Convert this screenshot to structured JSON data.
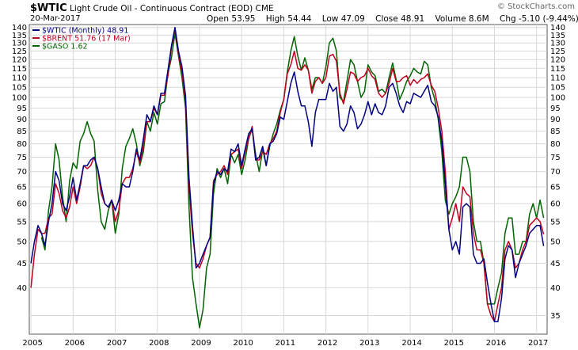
{
  "header": {
    "symbol": "$WTIC",
    "description": "Light Crude Oil - Continuous Contract (EOD)",
    "exchange": "CME",
    "date": "20-Mar-2017",
    "open_label": "Open",
    "open": "53.95",
    "high_label": "High",
    "high": "54.44",
    "low_label": "Low",
    "low": "47.09",
    "close_label": "Close",
    "close": "48.91",
    "volume_label": "Volume",
    "volume": "8.6M",
    "chg_label": "Chg",
    "chg": "-5.10 (-9.44%)",
    "chg_arrow": "▼",
    "credit": "© StockCharts.com"
  },
  "chart_data": {
    "type": "line",
    "x": [
      2005.0,
      2005.083,
      2005.167,
      2005.25,
      2005.333,
      2005.417,
      2005.5,
      2005.583,
      2005.667,
      2005.75,
      2005.833,
      2005.917,
      2006.0,
      2006.083,
      2006.167,
      2006.25,
      2006.333,
      2006.417,
      2006.5,
      2006.583,
      2006.667,
      2006.75,
      2006.833,
      2006.917,
      2007.0,
      2007.083,
      2007.167,
      2007.25,
      2007.333,
      2007.417,
      2007.5,
      2007.583,
      2007.667,
      2007.75,
      2007.833,
      2007.917,
      2008.0,
      2008.083,
      2008.167,
      2008.25,
      2008.333,
      2008.417,
      2008.5,
      2008.583,
      2008.667,
      2008.75,
      2008.833,
      2008.917,
      2009.0,
      2009.083,
      2009.167,
      2009.25,
      2009.333,
      2009.417,
      2009.5,
      2009.583,
      2009.667,
      2009.75,
      2009.833,
      2009.917,
      2010.0,
      2010.083,
      2010.167,
      2010.25,
      2010.333,
      2010.417,
      2010.5,
      2010.583,
      2010.667,
      2010.75,
      2010.833,
      2010.917,
      2011.0,
      2011.083,
      2011.167,
      2011.25,
      2011.333,
      2011.417,
      2011.5,
      2011.583,
      2011.667,
      2011.75,
      2011.833,
      2011.917,
      2012.0,
      2012.083,
      2012.167,
      2012.25,
      2012.333,
      2012.417,
      2012.5,
      2012.583,
      2012.667,
      2012.75,
      2012.833,
      2012.917,
      2013.0,
      2013.083,
      2013.167,
      2013.25,
      2013.333,
      2013.417,
      2013.5,
      2013.583,
      2013.667,
      2013.75,
      2013.833,
      2013.917,
      2014.0,
      2014.083,
      2014.167,
      2014.25,
      2014.333,
      2014.417,
      2014.5,
      2014.583,
      2014.667,
      2014.75,
      2014.833,
      2014.917,
      2015.0,
      2015.083,
      2015.167,
      2015.25,
      2015.333,
      2015.417,
      2015.5,
      2015.583,
      2015.667,
      2015.75,
      2015.833,
      2015.917,
      2016.0,
      2016.083,
      2016.167,
      2016.25,
      2016.333,
      2016.417,
      2016.5,
      2016.583,
      2016.667,
      2016.75,
      2016.833,
      2016.917,
      2017.0,
      2017.083,
      2017.167
    ],
    "series": [
      {
        "name": "$WTIC (Monthly) 48.91",
        "color": "#000080",
        "values": [
          45,
          50,
          54,
          52,
          49,
          55,
          60,
          70,
          67,
          60,
          58,
          62,
          68,
          61,
          66,
          72,
          72,
          74,
          75,
          71,
          65,
          60,
          59,
          61,
          58,
          61,
          66,
          65,
          65,
          70,
          78,
          74,
          82,
          92,
          89,
          96,
          92,
          102,
          102,
          114,
          128,
          140,
          125,
          116,
          101,
          68,
          54,
          44,
          45,
          47,
          49,
          51,
          66,
          70,
          69,
          71,
          70,
          78,
          77,
          80,
          72,
          78,
          84,
          86,
          74,
          75,
          79,
          72,
          80,
          81,
          84,
          91,
          90,
          98,
          107,
          113,
          103,
          96,
          96,
          89,
          79,
          93,
          99,
          99,
          99,
          107,
          103,
          105,
          87,
          85,
          88,
          96,
          93,
          86,
          88,
          92,
          98,
          92,
          97,
          93,
          92,
          96,
          105,
          107,
          102,
          96,
          93,
          98,
          97,
          102,
          101,
          100,
          103,
          106,
          98,
          96,
          91,
          81,
          66,
          53,
          48,
          50,
          47,
          59,
          60,
          59,
          47,
          45,
          45,
          46,
          41,
          37,
          34,
          34,
          38,
          46,
          49,
          48,
          42,
          45,
          47,
          49,
          52,
          53,
          54,
          54,
          48.91
        ]
      },
      {
        "name": "$BRENT 51.76 (17 Mar)",
        "color": "#c00020",
        "values": [
          40,
          47,
          53,
          52,
          52,
          56,
          57,
          66,
          63,
          58,
          56,
          59,
          65,
          60,
          65,
          72,
          71,
          72,
          75,
          71,
          63,
          60,
          59,
          61,
          55,
          58,
          66,
          68,
          68,
          71,
          77,
          73,
          79,
          89,
          89,
          95,
          92,
          101,
          101,
          111,
          127,
          139,
          123,
          113,
          98,
          65,
          52,
          45,
          44,
          46,
          49,
          51,
          67,
          69,
          70,
          72,
          69,
          76,
          77,
          78,
          71,
          77,
          82,
          87,
          74,
          74,
          77,
          76,
          80,
          82,
          85,
          93,
          99,
          112,
          117,
          125,
          115,
          114,
          117,
          114,
          102,
          108,
          110,
          107,
          110,
          122,
          123,
          119,
          102,
          97,
          104,
          113,
          112,
          108,
          110,
          111,
          115,
          111,
          109,
          102,
          100,
          102,
          107,
          115,
          108,
          108,
          110,
          111,
          106,
          109,
          107,
          109,
          110,
          112,
          106,
          103,
          95,
          85,
          70,
          53,
          56,
          60,
          55,
          65,
          63,
          62,
          52,
          48,
          48,
          45,
          37,
          35,
          34,
          37,
          40,
          48,
          50,
          48,
          44,
          45,
          48,
          50,
          54,
          55,
          56,
          55,
          51.76
        ]
      },
      {
        "name": "$GASO 1.62",
        "color": "#006400",
        "values": [
          null,
          null,
          null,
          51,
          48,
          58,
          65,
          80,
          74,
          62,
          55,
          67,
          73,
          71,
          81,
          84,
          89,
          84,
          81,
          64,
          55,
          53,
          58,
          61,
          52,
          57,
          71,
          79,
          82,
          86,
          80,
          72,
          77,
          89,
          85,
          93,
          88,
          97,
          98,
          112,
          121,
          136,
          122,
          110,
          95,
          59,
          42,
          37,
          33,
          36,
          44,
          47,
          63,
          71,
          68,
          71,
          66,
          76,
          73,
          76,
          69,
          74,
          82,
          86,
          76,
          70,
          78,
          72,
          79,
          84,
          88,
          94,
          99,
          113,
          125,
          134,
          122,
          114,
          121,
          114,
          104,
          110,
          110,
          107,
          116,
          130,
          133,
          125,
          100,
          98,
          108,
          120,
          117,
          108,
          100,
          103,
          117,
          113,
          111,
          103,
          104,
          102,
          110,
          118,
          109,
          99,
          103,
          108,
          111,
          115,
          113,
          112,
          119,
          117,
          105,
          99,
          90,
          77,
          61,
          57,
          60,
          62,
          65,
          75,
          75,
          70,
          55,
          50,
          50,
          45,
          37,
          37,
          37,
          40,
          43,
          52,
          56,
          56,
          47,
          47,
          50,
          50,
          57,
          60,
          56,
          61,
          56
        ]
      }
    ],
    "y_ticks": [
      35,
      40,
      45,
      50,
      55,
      60,
      65,
      70,
      75,
      80,
      85,
      90,
      95,
      100,
      105,
      110,
      115,
      120,
      125,
      130,
      135,
      140
    ],
    "y_left_ticks": [
      40,
      45,
      50,
      55,
      60,
      65,
      70,
      75,
      80,
      85,
      90,
      95,
      100,
      105,
      110,
      115,
      120,
      125,
      130,
      135,
      140
    ],
    "y_right_ticks": [
      35,
      40,
      45,
      50,
      55,
      60,
      65,
      70,
      75,
      80,
      85,
      90,
      95,
      100,
      105,
      110,
      115,
      120,
      125,
      130,
      135,
      140
    ],
    "x_ticks": [
      2005,
      2006,
      2007,
      2008,
      2009,
      2010,
      2011,
      2012,
      2013,
      2014,
      2015,
      2016,
      2017
    ],
    "x_tick_labels": [
      "2005",
      "2006",
      "2007",
      "2008",
      "2009",
      "2010",
      "2011",
      "2012",
      "2013",
      "2014",
      "2015",
      "2016",
      "2017"
    ],
    "ylim": [
      32,
      142
    ],
    "xlim": [
      2004.96,
      2017.25
    ],
    "y_scale": "log",
    "grid": true,
    "legend": "top-left"
  }
}
